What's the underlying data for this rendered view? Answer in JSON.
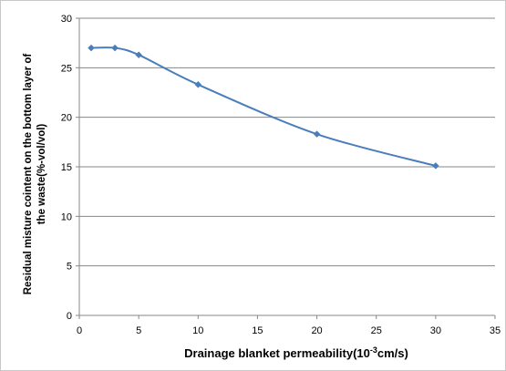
{
  "chart_data": {
    "type": "line",
    "title": "",
    "xlabel": "Drainage blanket permeability(10",
    "xlabel_exponent": "-3",
    "xlabel_unit": "cm/s)",
    "ylabel_line1": "Residual misture cointent on the bottom layer of",
    "ylabel_line2": "the waste(%-vol/vol)",
    "xlim": [
      0,
      35
    ],
    "ylim": [
      0,
      30
    ],
    "x_ticks": [
      0,
      5,
      10,
      15,
      20,
      25,
      30,
      35
    ],
    "y_ticks": [
      0,
      5,
      10,
      15,
      20,
      25,
      30
    ],
    "grid": "horizontal",
    "legend": "none",
    "marker": "diamond",
    "series": [
      {
        "color": "#4a7ebb",
        "x": [
          1,
          3,
          5,
          10,
          20,
          30
        ],
        "y": [
          27.0,
          27.0,
          26.3,
          23.3,
          18.3,
          15.1
        ]
      }
    ]
  }
}
